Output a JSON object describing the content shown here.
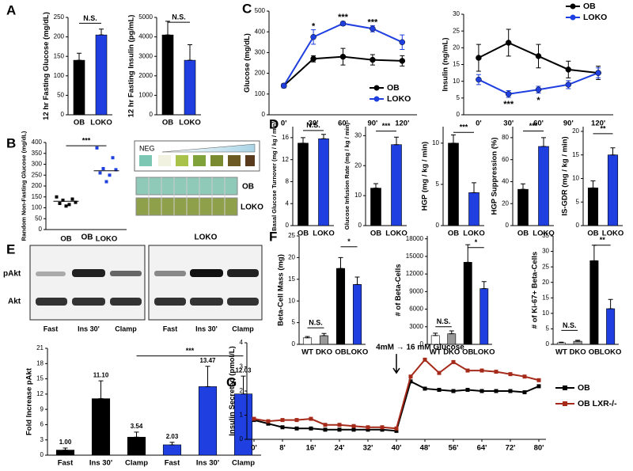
{
  "panel_labels": [
    "A",
    "B",
    "C",
    "D",
    "E",
    "F",
    "G"
  ],
  "blot_B": {
    "labels": [
      "NEG",
      "OB",
      "LOKO"
    ]
  },
  "blot_E": {
    "groups": [
      "OB",
      "LOKO"
    ],
    "rows": [
      "pAkt",
      "Akt"
    ],
    "lanes": [
      "Fast",
      "Ins 30'",
      "Clamp",
      "Fast",
      "Ins 30'",
      "Clamp"
    ]
  },
  "chart_data": [
    {
      "type": "bar",
      "ylabel": "12 hr Fasting Glucose (mg/dL)",
      "categories": [
        "OB",
        "LOKO"
      ],
      "values": [
        140,
        205
      ],
      "errors": [
        18,
        15
      ],
      "colors": [
        "#000000",
        "#1f3fe0"
      ],
      "ylim": [
        0,
        250
      ],
      "yticks": [
        0,
        50,
        100,
        150,
        200,
        250
      ],
      "annotations": [
        "N.S."
      ]
    },
    {
      "type": "bar",
      "ylabel": "12 hr Fasting Insulin (pg/mL)",
      "categories": [
        "OB",
        "LOKO"
      ],
      "values": [
        4100,
        2800
      ],
      "errors": [
        700,
        800
      ],
      "colors": [
        "#000000",
        "#1f3fe0"
      ],
      "ylim": [
        0,
        5000
      ],
      "yticks": [
        0,
        1000,
        2000,
        3000,
        4000,
        5000
      ],
      "annotations": [
        "N.S."
      ]
    },
    {
      "type": "line",
      "ylabel": "Glucose (mg/dL)",
      "categories": [
        "0'",
        "30'",
        "60'",
        "90'",
        "120'"
      ],
      "series": [
        {
          "name": "OB",
          "color": "#000000",
          "values": [
            140,
            270,
            280,
            265,
            260
          ],
          "errors": [
            10,
            15,
            40,
            25,
            25
          ]
        },
        {
          "name": "LOKO",
          "color": "#1f3fe0",
          "values": [
            140,
            375,
            440,
            415,
            350
          ],
          "errors": [
            10,
            35,
            10,
            15,
            35
          ]
        }
      ],
      "ylim": [
        0,
        500
      ],
      "yticks": [
        0,
        100,
        200,
        300,
        400,
        500
      ],
      "legend": "lower right",
      "annotations": [
        "*",
        "***",
        "***"
      ]
    },
    {
      "type": "line",
      "ylabel": "Insulin (ng/mL)",
      "categories": [
        "0'",
        "30'",
        "60'",
        "90'",
        "120'"
      ],
      "series": [
        {
          "name": "OB",
          "color": "#000000",
          "values": [
            17,
            21.5,
            17.5,
            13.5,
            12.5
          ],
          "errors": [
            4,
            4,
            3.5,
            2.5,
            2
          ]
        },
        {
          "name": "LOKO",
          "color": "#1f3fe0",
          "values": [
            10.5,
            6.2,
            7.5,
            9,
            12.5
          ],
          "errors": [
            1.5,
            1,
            1,
            1.2,
            1.5
          ]
        }
      ],
      "ylim": [
        0,
        30
      ],
      "yticks": [
        0,
        5,
        10,
        15,
        20,
        25,
        30
      ],
      "legend": "upper right",
      "annotations": [
        "***",
        "*"
      ]
    },
    {
      "type": "strip",
      "ylabel": "Random Non-Fasting Glucose (mg/dL)",
      "categories": [
        "OB",
        "LOKO"
      ],
      "values": [
        [
          150,
          140,
          135,
          125,
          120,
          115,
          108
        ],
        [
          375,
          330,
          280,
          275,
          260,
          250,
          220
        ]
      ],
      "means": [
        130,
        270
      ],
      "colors": [
        "#000000",
        "#1f3fe0"
      ],
      "ylim": [
        0,
        400
      ],
      "yticks": [
        0,
        50,
        100,
        150,
        200,
        250,
        300,
        350,
        400
      ],
      "annotations": [
        "***"
      ]
    },
    {
      "type": "bar",
      "ylabel": "Basal Glucose Turnover (mg / kg / min)",
      "categories": [
        "OB",
        "LOKO"
      ],
      "values": [
        15,
        15.8
      ],
      "errors": [
        1,
        0.8
      ],
      "colors": [
        "#000000",
        "#1f3fe0"
      ],
      "ylim": [
        0,
        18
      ],
      "yticks": [
        0,
        4,
        8,
        12,
        16
      ],
      "annotations": [
        "N.S."
      ]
    },
    {
      "type": "bar",
      "ylabel": "Glucose Infusion Rate (mg / kg / min)",
      "categories": [
        "OB",
        "LOKO"
      ],
      "values": [
        12.5,
        27
      ],
      "errors": [
        1.5,
        2.5
      ],
      "colors": [
        "#000000",
        "#1f3fe0"
      ],
      "ylim": [
        0,
        33
      ],
      "yticks": [
        0,
        10,
        20,
        30
      ],
      "annotations": [
        "***"
      ]
    },
    {
      "type": "bar",
      "ylabel": "HGP (mg / kg / min)",
      "categories": [
        "OB",
        "LOKO"
      ],
      "values": [
        10,
        4
      ],
      "errors": [
        1,
        1.2
      ],
      "colors": [
        "#000000",
        "#1f3fe0"
      ],
      "ylim": [
        0,
        12
      ],
      "yticks": [
        0,
        5,
        10
      ],
      "annotations": [
        "***"
      ]
    },
    {
      "type": "bar",
      "ylabel": "HGP Suppression (%)",
      "categories": [
        "OB",
        "LOKO"
      ],
      "values": [
        33,
        72
      ],
      "errors": [
        5,
        8
      ],
      "colors": [
        "#000000",
        "#1f3fe0"
      ],
      "ylim": [
        0,
        90
      ],
      "yticks": [
        0,
        20,
        40,
        60,
        80
      ],
      "annotations": [
        "***"
      ]
    },
    {
      "type": "bar",
      "ylabel": "IS-GDR (mg / kg / min)",
      "categories": [
        "OB",
        "LOKO"
      ],
      "values": [
        8,
        15
      ],
      "errors": [
        1.5,
        1.5
      ],
      "colors": [
        "#000000",
        "#1f3fe0"
      ],
      "ylim": [
        0,
        21
      ],
      "yticks": [
        0,
        5,
        10,
        15,
        20
      ],
      "annotations": [
        "**"
      ]
    },
    {
      "type": "bar",
      "ylabel": "Fold Increase pAkt",
      "categories": [
        "Fast",
        "Ins 30'",
        "Clamp",
        "Fast",
        "Ins 30'",
        "Clamp"
      ],
      "values": [
        1,
        11.1,
        3.54,
        2.03,
        13.47,
        12.03
      ],
      "value_labels": [
        "1.00",
        "11.10",
        "3.54",
        "2.03",
        "13.47",
        "12.03"
      ],
      "errors": [
        0.4,
        3.5,
        1,
        0.5,
        4,
        3.5
      ],
      "colors": [
        "#000000",
        "#000000",
        "#000000",
        "#1f3fe0",
        "#1f3fe0",
        "#1f3fe0"
      ],
      "ylim": [
        0,
        21
      ],
      "yticks": [
        0,
        3,
        6,
        9,
        12,
        15,
        18,
        21
      ],
      "annotations": [
        "***"
      ]
    },
    {
      "type": "bar",
      "ylabel": "Beta-Cell Mass (mg)",
      "categories": [
        "WT",
        "DKO",
        "OB",
        "LOKO"
      ],
      "values": [
        1.5,
        2,
        17.5,
        13.8
      ],
      "errors": [
        0.3,
        0.5,
        2.5,
        1.7
      ],
      "colors": [
        "#ffffff",
        "#999999",
        "#000000",
        "#1f3fe0"
      ],
      "ylim": [
        0,
        25
      ],
      "yticks": [
        0,
        5,
        10,
        15,
        20,
        25
      ],
      "annotations": [
        "N.S.",
        "*"
      ]
    },
    {
      "type": "bar",
      "ylabel": "# of Beta-Cells",
      "categories": [
        "WT",
        "DKO",
        "OB",
        "LOKO"
      ],
      "values": [
        1500,
        1800,
        14000,
        9500
      ],
      "errors": [
        400,
        500,
        3000,
        1200
      ],
      "colors": [
        "#ffffff",
        "#999999",
        "#000000",
        "#1f3fe0"
      ],
      "ylim": [
        0,
        18500
      ],
      "yticks": [
        0,
        3000,
        6000,
        9000,
        12000,
        15000,
        18000
      ],
      "annotations": [
        "N.S.",
        "*"
      ]
    },
    {
      "type": "bar",
      "ylabel": "# of Ki-67+ Beta-Cells",
      "categories": [
        "WT",
        "DKO",
        "OB",
        "LOKO"
      ],
      "values": [
        0.5,
        1,
        27,
        11.5
      ],
      "errors": [
        0.2,
        0.3,
        5,
        3
      ],
      "colors": [
        "#ffffff",
        "#999999",
        "#000000",
        "#1f3fe0"
      ],
      "ylim": [
        0,
        35
      ],
      "yticks": [
        0,
        5,
        10,
        15,
        20,
        25,
        30,
        35
      ],
      "annotations": [
        "N.S.",
        "**"
      ]
    },
    {
      "type": "line",
      "ylabel": "Insulin Secreted (pmol/L)",
      "x": [
        0,
        4,
        8,
        12,
        16,
        20,
        24,
        28,
        32,
        36,
        40,
        44,
        48,
        52,
        56,
        60,
        64,
        68,
        72,
        76,
        80
      ],
      "series": [
        {
          "name": "OB",
          "color": "#000000",
          "values": [
            0.8,
            0.65,
            0.5,
            0.45,
            0.45,
            0.4,
            0.4,
            0.4,
            0.4,
            0.4,
            0.35,
            2.4,
            2.1,
            2.05,
            2.0,
            2.05,
            2.0,
            2.0,
            2.0,
            1.95,
            2.2
          ]
        },
        {
          "name": "OB LXR-/-",
          "color": "#a52a1a",
          "values": [
            0.85,
            0.75,
            0.8,
            0.8,
            0.85,
            0.6,
            0.6,
            0.55,
            0.5,
            0.5,
            0.45,
            2.6,
            3.3,
            2.75,
            3.2,
            2.85,
            2.85,
            2.8,
            2.7,
            2.6,
            2.45
          ]
        }
      ],
      "xlim": [
        -2,
        82
      ],
      "xticks": [
        {
          "value": 0,
          "label": "0'"
        },
        {
          "value": 8,
          "label": "8'"
        },
        {
          "value": 16,
          "label": "16'"
        },
        {
          "value": 24,
          "label": "24'"
        },
        {
          "value": 32,
          "label": "32'"
        },
        {
          "value": 40,
          "label": "40'"
        },
        {
          "value": 48,
          "label": "48'"
        },
        {
          "value": 56,
          "label": "56'"
        },
        {
          "value": 64,
          "label": "64'"
        },
        {
          "value": 72,
          "label": "72'"
        },
        {
          "value": 80,
          "label": "80'"
        }
      ],
      "ylim": [
        0,
        4
      ],
      "yticks": [
        0,
        1,
        2,
        3,
        4
      ],
      "legend": "right",
      "annotations": [
        "4mM → 16 mM Glucose"
      ]
    }
  ]
}
